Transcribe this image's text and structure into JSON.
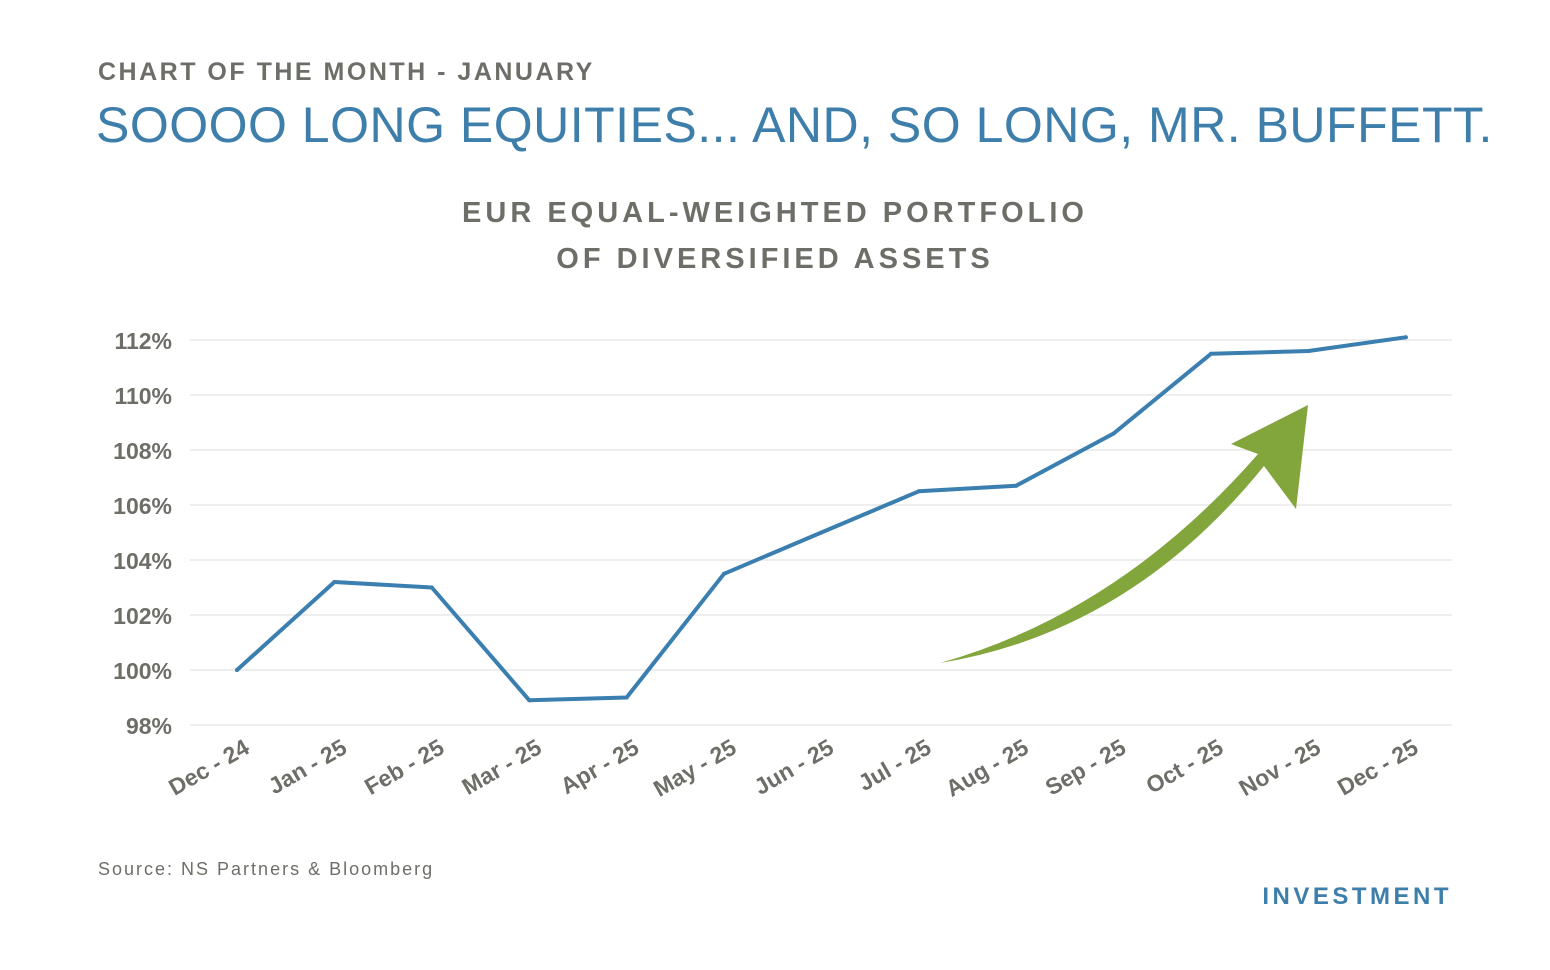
{
  "header": {
    "kicker": "CHART OF THE MONTH - JANUARY",
    "headline": "SOOOO LONG EQUITIES... AND, SO LONG, MR. BUFFETT."
  },
  "footer": {
    "source": "Source: NS Partners & Bloomberg",
    "brand": "INVESTMENT"
  },
  "colors": {
    "line": "#3a7fb0",
    "arrow": "#82a53c",
    "grid": "#e8e8e8",
    "text": "#6e6e68",
    "accent": "#3d7eaa"
  },
  "chart_data": {
    "type": "line",
    "title_lines": [
      "EUR EQUAL-WEIGHTED PORTFOLIO",
      "OF DIVERSIFIED ASSETS"
    ],
    "categories": [
      "Dec - 24",
      "Jan - 25",
      "Feb - 25",
      "Mar - 25",
      "Apr - 25",
      "May - 25",
      "Jun - 25",
      "Jul - 25",
      "Aug - 25",
      "Sep - 25",
      "Oct - 25",
      "Nov - 25",
      "Dec - 25"
    ],
    "series": [
      {
        "values": [
          100.0,
          103.2,
          103.0,
          98.9,
          99.0,
          103.5,
          105.0,
          106.5,
          106.7,
          108.6,
          111.5,
          111.6,
          112.1
        ]
      }
    ],
    "yticks": [
      98,
      100,
      102,
      104,
      106,
      108,
      110,
      112
    ],
    "ytick_labels": [
      "98%",
      "100%",
      "102%",
      "104%",
      "106%",
      "108%",
      "110%",
      "112%"
    ],
    "ylim": [
      98,
      112
    ],
    "grid": true,
    "legend": "none",
    "annotations": [
      {
        "type": "arrow",
        "direction": "up-right",
        "color": "green",
        "label": ""
      }
    ]
  }
}
